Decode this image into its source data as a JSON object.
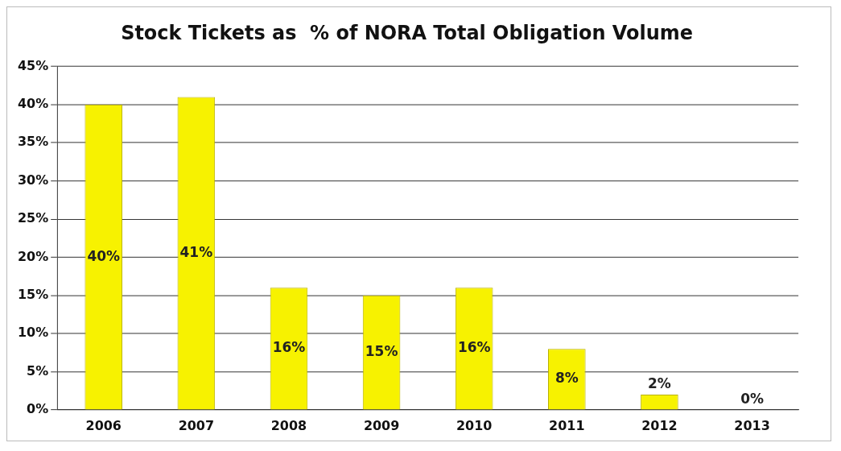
{
  "chart_data": {
    "type": "bar",
    "title": "Stock Tickets as  % of NORA Total Obligation Volume",
    "categories": [
      "2006",
      "2007",
      "2008",
      "2009",
      "2010",
      "2011",
      "2012",
      "2013"
    ],
    "values": [
      40,
      41,
      16,
      15,
      16,
      8,
      2,
      0
    ],
    "value_labels": [
      "40%",
      "41%",
      "16%",
      "15%",
      "16%",
      "8%",
      "2%",
      "0%"
    ],
    "color": "#f7f200",
    "ylim": [
      0,
      45
    ],
    "yticks": [
      {
        "value": 0,
        "label": "0%"
      },
      {
        "value": 5,
        "label": "5%"
      },
      {
        "value": 10,
        "label": "10%"
      },
      {
        "value": 15,
        "label": "15%"
      },
      {
        "value": 20,
        "label": "20%"
      },
      {
        "value": 25,
        "label": "25%"
      },
      {
        "value": 30,
        "label": "30%"
      },
      {
        "value": 35,
        "label": "35%"
      },
      {
        "value": 40,
        "label": "40%"
      },
      {
        "value": 45,
        "label": "45%"
      }
    ],
    "grid": "y",
    "legend": false
  }
}
